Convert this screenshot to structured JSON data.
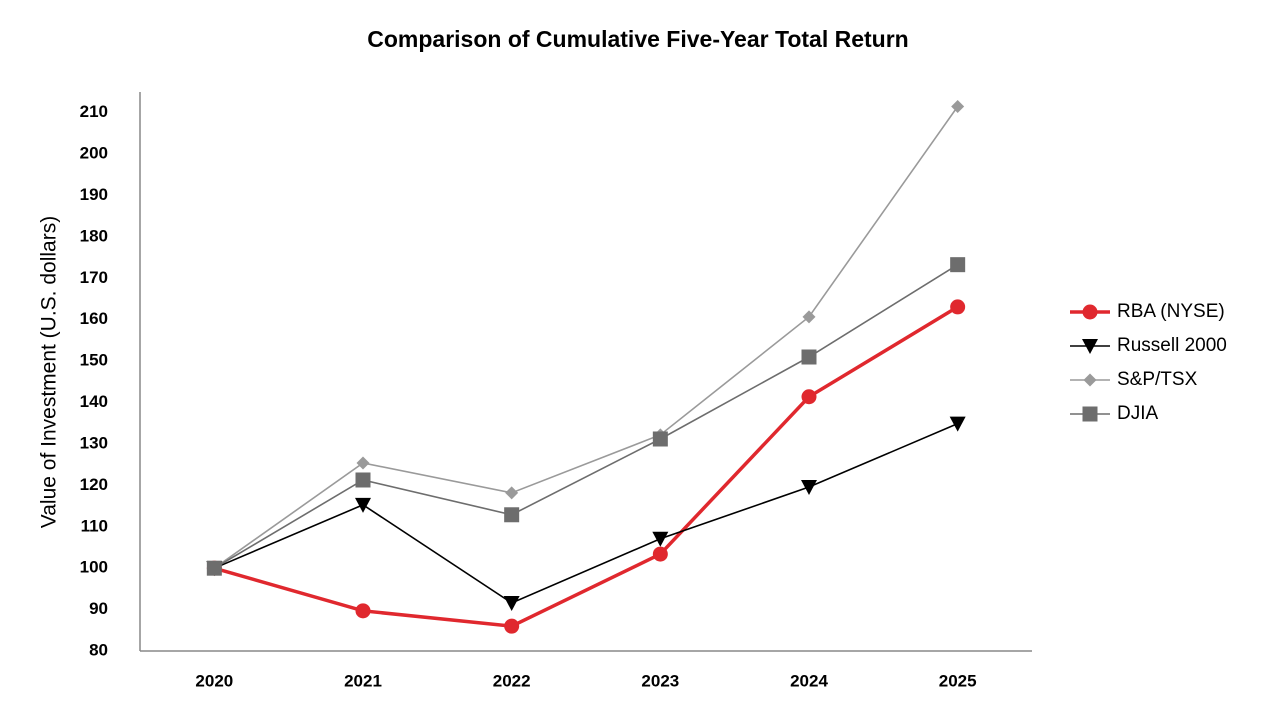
{
  "chart_data": {
    "type": "line",
    "title": "Comparison of Cumulative Five-Year Total Return",
    "y_label": "Value of Investment (U.S. dollars)",
    "categories": [
      "2020",
      "2021",
      "2022",
      "2023",
      "2024",
      "2025"
    ],
    "series": [
      {
        "name": "RBA (NYSE)",
        "color": "#e0282e",
        "marker": "circle",
        "values": [
          100,
          89.7,
          86.0,
          103.4,
          141.4,
          163.1
        ]
      },
      {
        "name": "Russell 2000",
        "color": "#000000",
        "marker": "triangle-down",
        "values": [
          100,
          115.3,
          91.6,
          107.1,
          119.6,
          134.9
        ]
      },
      {
        "name": "S&P/TSX",
        "color": "#9a9a9a",
        "marker": "diamond",
        "values": [
          100,
          125.4,
          118.2,
          132.2,
          160.7,
          211.5
        ]
      },
      {
        "name": "DJIA",
        "color": "#6d6d6d",
        "marker": "square",
        "values": [
          100,
          121.3,
          112.9,
          131.2,
          151.0,
          173.3
        ]
      }
    ],
    "ylim": [
      80,
      215
    ],
    "yticks": [
      80,
      90,
      100,
      110,
      120,
      130,
      140,
      150,
      160,
      170,
      180,
      190,
      200,
      210
    ],
    "grid": false,
    "legend": "right"
  }
}
